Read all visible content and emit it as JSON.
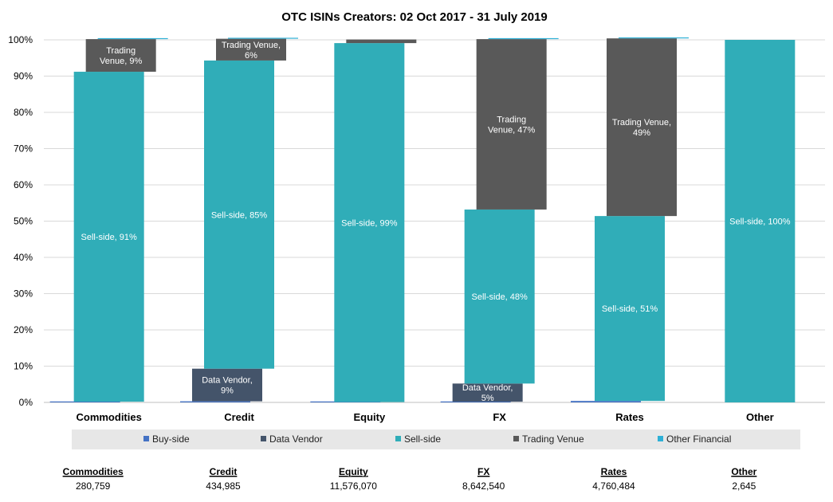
{
  "chart_data": {
    "type": "bar",
    "stacked": true,
    "title": "OTC ISINs Creators: 02 Oct 2017 - 31 July 2019",
    "xlabel": "",
    "ylabel": "",
    "ylim": [
      0,
      100
    ],
    "y_ticks": [
      "0%",
      "10%",
      "20%",
      "30%",
      "40%",
      "50%",
      "60%",
      "70%",
      "80%",
      "90%",
      "100%"
    ],
    "grid": true,
    "legend_position": "bottom",
    "categories": [
      "Commodities",
      "Credit",
      "Equity",
      "FX",
      "Rates",
      "Other"
    ],
    "series": [
      {
        "name": "Buy-side",
        "color": "#4472C4",
        "values": [
          0.2,
          0.3,
          0.1,
          0.2,
          0.4,
          0
        ]
      },
      {
        "name": "Data Vendor",
        "color": "#44546A",
        "values": [
          0,
          9,
          0,
          5,
          0,
          0
        ]
      },
      {
        "name": "Sell-side",
        "color": "#30ADB8",
        "values": [
          91,
          85,
          99,
          48,
          51,
          100
        ]
      },
      {
        "name": "Trading Venue",
        "color": "#595959",
        "values": [
          9,
          6,
          1,
          47,
          49,
          0
        ]
      },
      {
        "name": "Other Financial",
        "color": "#2EB0D6",
        "values": [
          0.2,
          0.2,
          0,
          0.1,
          0.2,
          0
        ]
      }
    ],
    "data_labels": [
      {
        "category": "Commodities",
        "series": "Sell-side",
        "lines": [
          "Sell-side, 91%"
        ]
      },
      {
        "category": "Commodities",
        "series": "Trading Venue",
        "lines": [
          "Trading",
          "Venue, 9%"
        ]
      },
      {
        "category": "Credit",
        "series": "Data Vendor",
        "lines": [
          "Data Vendor,",
          "9%"
        ]
      },
      {
        "category": "Credit",
        "series": "Sell-side",
        "lines": [
          "Sell-side, 85%"
        ]
      },
      {
        "category": "Credit",
        "series": "Trading Venue",
        "lines": [
          "Trading Venue,",
          "6%"
        ]
      },
      {
        "category": "Equity",
        "series": "Sell-side",
        "lines": [
          "Sell-side, 99%"
        ]
      },
      {
        "category": "FX",
        "series": "Data Vendor",
        "lines": [
          "Data Vendor,",
          "5%"
        ]
      },
      {
        "category": "FX",
        "series": "Sell-side",
        "lines": [
          "Sell-side, 48%"
        ]
      },
      {
        "category": "FX",
        "series": "Trading Venue",
        "lines": [
          "Trading",
          "Venue, 47%"
        ]
      },
      {
        "category": "Rates",
        "series": "Sell-side",
        "lines": [
          "Sell-side, 51%"
        ]
      },
      {
        "category": "Rates",
        "series": "Trading Venue",
        "lines": [
          "Trading Venue,",
          "49%"
        ]
      },
      {
        "category": "Other",
        "series": "Sell-side",
        "lines": [
          "Sell-side, 100%"
        ]
      }
    ],
    "totals": [
      {
        "category": "Commodities",
        "value": "280,759"
      },
      {
        "category": "Credit",
        "value": "434,985"
      },
      {
        "category": "Equity",
        "value": "11,576,070"
      },
      {
        "category": "FX",
        "value": "8,642,540"
      },
      {
        "category": "Rates",
        "value": "4,760,484"
      },
      {
        "category": "Other",
        "value": "2,645"
      }
    ]
  }
}
